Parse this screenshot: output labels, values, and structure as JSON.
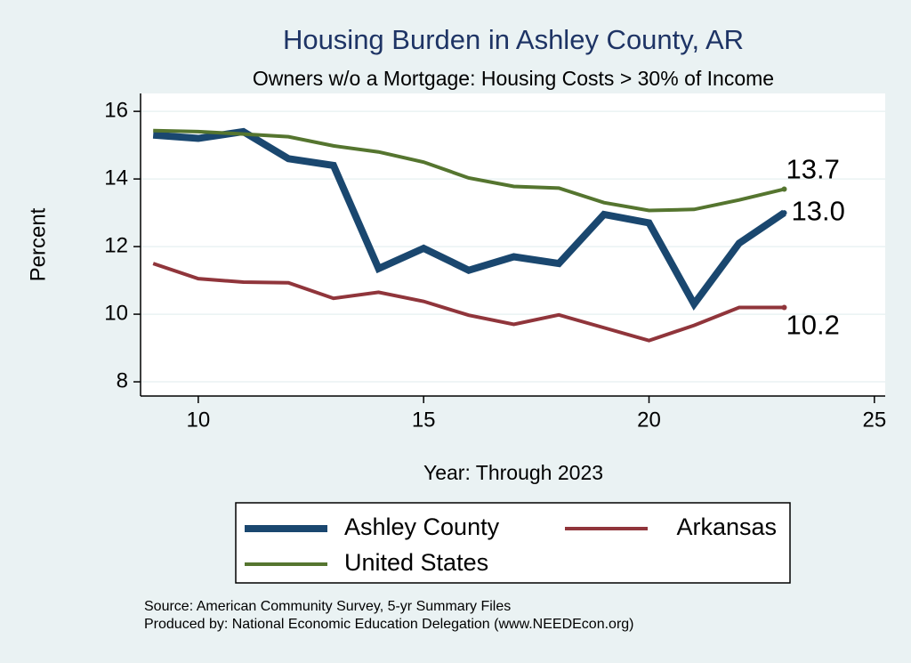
{
  "chart_data": {
    "type": "line",
    "title": "Housing Burden in Ashley County, AR",
    "subtitle": "Owners w/o a Mortgage: Housing Costs > 30% of Income",
    "y_label": "Percent",
    "x_label": "Year: Through 2023",
    "notes": [
      "Source: American Community Survey, 5-yr Summary Files",
      "Produced by: National Economic Education Delegation (www.NEEDEcon.org)"
    ],
    "x": [
      9,
      10,
      11,
      12,
      13,
      14,
      15,
      16,
      17,
      18,
      19,
      20,
      21,
      22,
      23
    ],
    "series": [
      {
        "name": "Ashley County",
        "color": "#1a476f",
        "width": 8,
        "values": [
          15.3,
          15.2,
          15.4,
          14.6,
          14.4,
          11.35,
          11.95,
          11.3,
          11.7,
          11.5,
          12.95,
          12.7,
          10.3,
          12.1,
          13.0
        ],
        "value_labels": [
          null,
          null,
          null,
          null,
          null,
          null,
          null,
          null,
          null,
          null,
          null,
          null,
          null,
          null,
          "13.0"
        ]
      },
      {
        "name": "Arkansas",
        "color": "#90353b",
        "width": 4,
        "values": [
          11.5,
          11.05,
          10.95,
          10.93,
          10.47,
          10.65,
          10.38,
          9.97,
          9.7,
          9.98,
          9.6,
          9.22,
          9.67,
          10.2,
          10.2
        ],
        "value_labels": [
          null,
          null,
          null,
          null,
          null,
          null,
          null,
          null,
          null,
          null,
          null,
          null,
          null,
          null,
          "10.2"
        ]
      },
      {
        "name": "United States",
        "color": "#55752f",
        "width": 4,
        "values": [
          15.43,
          15.4,
          15.33,
          15.25,
          14.98,
          14.8,
          14.5,
          14.03,
          13.78,
          13.73,
          13.3,
          13.07,
          13.1,
          13.38,
          13.7
        ],
        "value_labels": [
          null,
          null,
          null,
          null,
          null,
          null,
          null,
          null,
          null,
          null,
          null,
          null,
          null,
          null,
          "13.7"
        ]
      }
    ],
    "xlim": [
      8.72,
      25.24
    ],
    "ylim": [
      7.58,
      16.53
    ],
    "xticks": [
      10,
      15,
      20,
      25
    ],
    "yticks": [
      8,
      10,
      12,
      14,
      16
    ],
    "grid": true
  }
}
